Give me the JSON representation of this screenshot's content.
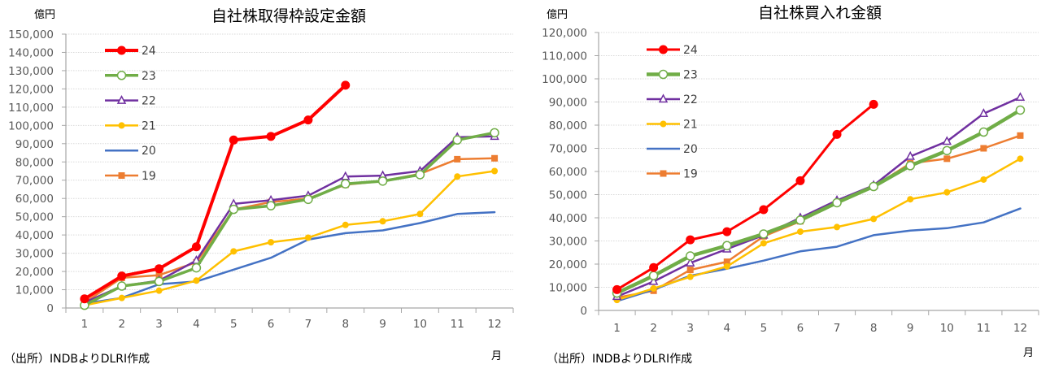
{
  "chart_data": [
    {
      "type": "line",
      "title": "自社株取得枠設定金額",
      "ylabel": "億円",
      "xlabel": "月",
      "source": "（出所）INDBよりDLRI作成",
      "categories": [
        "1",
        "2",
        "3",
        "4",
        "5",
        "6",
        "7",
        "8",
        "9",
        "10",
        "11",
        "12"
      ],
      "ylim": [
        0,
        150000
      ],
      "yticks": [
        "0",
        "10,000",
        "20,000",
        "30,000",
        "40,000",
        "50,000",
        "60,000",
        "70,000",
        "80,000",
        "90,000",
        "100,000",
        "110,000",
        "120,000",
        "130,000",
        "140,000",
        "150,000"
      ],
      "grid": true,
      "legend_position": "top-left",
      "series": [
        {
          "name": "24",
          "color": "#FF0000",
          "marker": "filled-circle",
          "values": [
            5000,
            17500,
            21500,
            33500,
            92000,
            94000,
            103000,
            122000
          ]
        },
        {
          "name": "23",
          "color": "#70AD47",
          "marker": "open-circle",
          "values": [
            1500,
            12000,
            14500,
            22000,
            54000,
            56000,
            59500,
            68000,
            69500,
            73000,
            92000,
            96000
          ]
        },
        {
          "name": "22",
          "color": "#7030A0",
          "marker": "open-triangle",
          "values": [
            3000,
            12000,
            15000,
            26000,
            57000,
            59000,
            61500,
            72000,
            72500,
            75000,
            93500,
            94000
          ]
        },
        {
          "name": "21",
          "color": "#FFC000",
          "marker": "small-circle",
          "values": [
            1500,
            5500,
            9500,
            15000,
            31000,
            36000,
            38500,
            45500,
            47500,
            51500,
            72000,
            75000
          ]
        },
        {
          "name": "20",
          "color": "#4472C4",
          "marker": "none",
          "values": [
            2500,
            5500,
            13000,
            14500,
            21000,
            27500,
            37500,
            41000,
            42500,
            46500,
            51500,
            52500
          ]
        },
        {
          "name": "19",
          "color": "#ED7D31",
          "marker": "square",
          "values": [
            3000,
            16500,
            18000,
            25000,
            54000,
            58000,
            60000,
            67500,
            69500,
            73500,
            81500,
            82000
          ]
        }
      ]
    },
    {
      "type": "line",
      "title": "自社株買入れ金額",
      "ylabel": "億円",
      "xlabel": "月",
      "source": "（出所）INDBよりDLRI作成",
      "categories": [
        "1",
        "2",
        "3",
        "4",
        "5",
        "6",
        "7",
        "8",
        "9",
        "10",
        "11",
        "12"
      ],
      "ylim": [
        0,
        120000
      ],
      "yticks": [
        "0",
        "10,000",
        "20,000",
        "30,000",
        "40,000",
        "50,000",
        "60,000",
        "70,000",
        "80,000",
        "90,000",
        "100,000",
        "110,000",
        "120,000"
      ],
      "grid": true,
      "legend_position": "top-left",
      "series": [
        {
          "name": "24",
          "color": "#FF0000",
          "marker": "filled-circle",
          "values": [
            9000,
            18500,
            30500,
            34000,
            43500,
            56000,
            76000,
            89000
          ]
        },
        {
          "name": "23",
          "color": "#70AD47",
          "marker": "open-circle",
          "values": [
            7500,
            15000,
            23500,
            28000,
            33000,
            39000,
            46500,
            53500,
            62500,
            69000,
            77000,
            86500
          ]
        },
        {
          "name": "22",
          "color": "#7030A0",
          "marker": "open-triangle",
          "values": [
            6000,
            12500,
            20500,
            26500,
            32500,
            40000,
            47500,
            54000,
            66500,
            73000,
            85000,
            92000
          ]
        },
        {
          "name": "21",
          "color": "#FFC000",
          "marker": "small-circle",
          "values": [
            4500,
            9500,
            14500,
            19000,
            29000,
            34000,
            36000,
            39500,
            48000,
            51000,
            56500,
            65500
          ]
        },
        {
          "name": "20",
          "color": "#4472C4",
          "marker": "none",
          "values": [
            4000,
            9000,
            15000,
            18000,
            21500,
            25500,
            27500,
            32500,
            34500,
            35500,
            38000,
            44000
          ]
        },
        {
          "name": "19",
          "color": "#ED7D31",
          "marker": "square",
          "values": [
            5500,
            8500,
            17500,
            21000,
            32000,
            38500,
            46500,
            53500,
            63500,
            65500,
            70000,
            75500
          ]
        }
      ]
    }
  ]
}
